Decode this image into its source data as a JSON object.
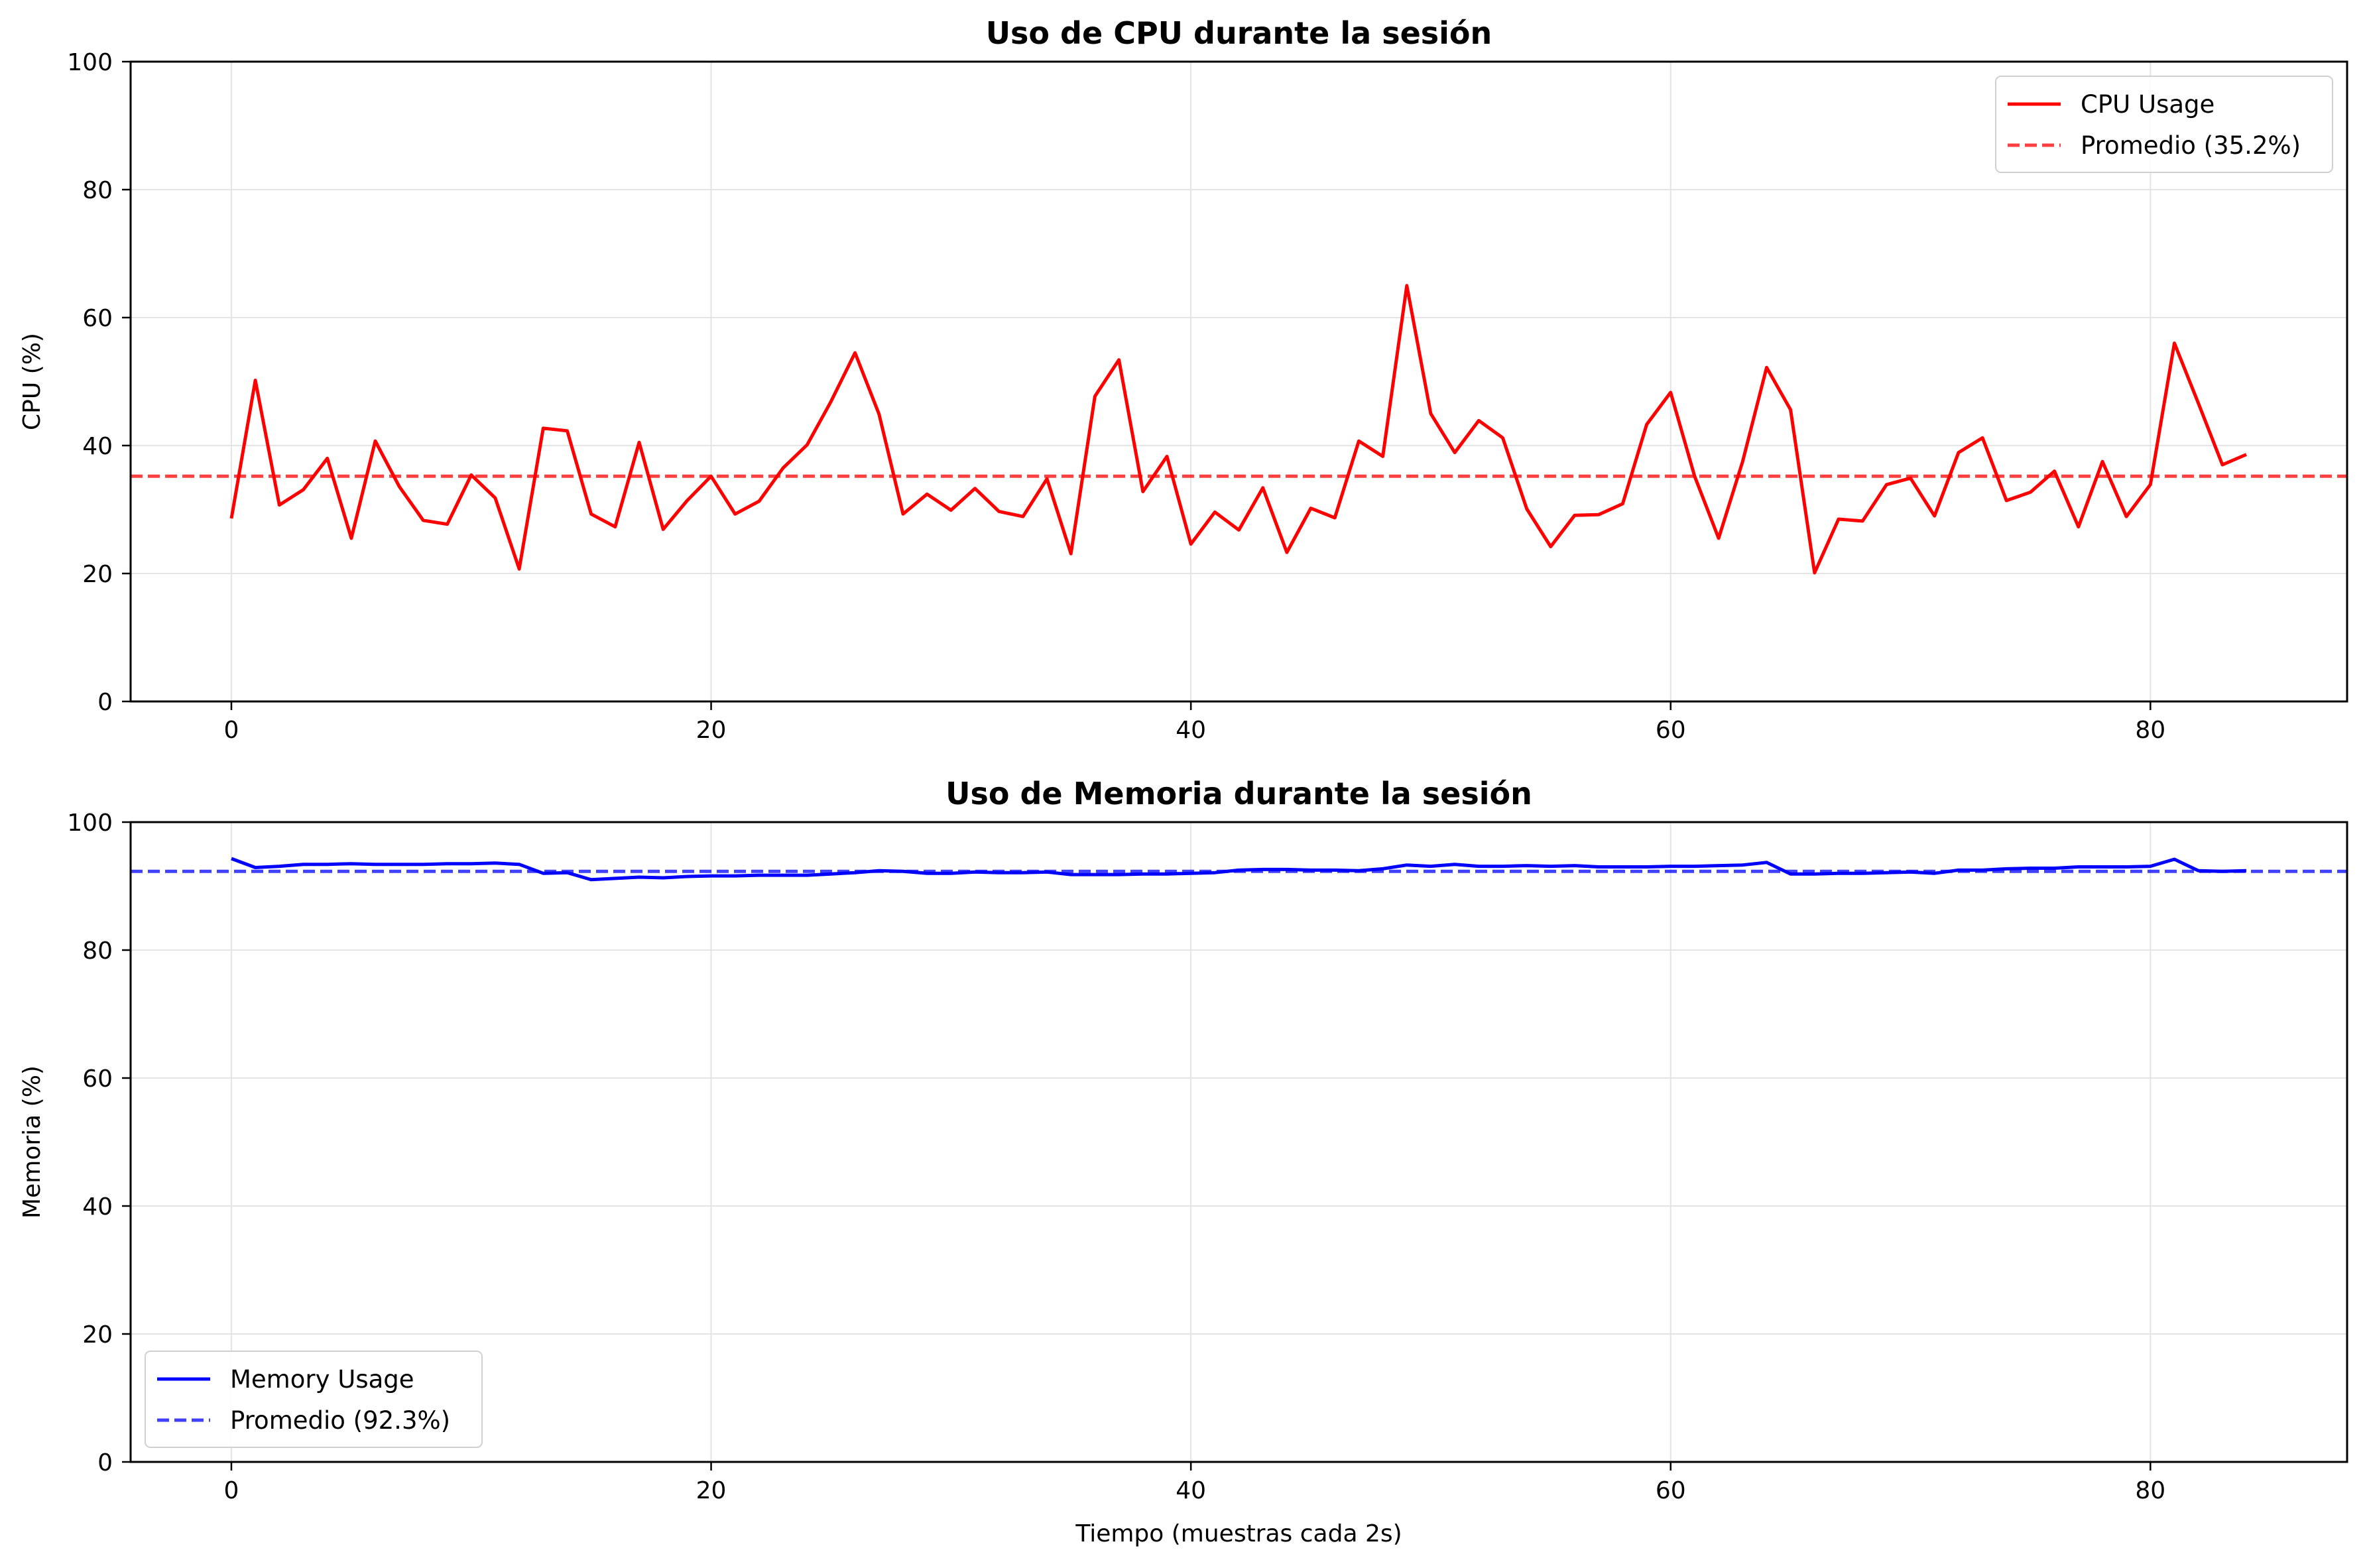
{
  "chart_data": [
    {
      "type": "line",
      "title": "Uso de CPU durante la sesión",
      "xlabel": "",
      "ylabel": "CPU (%)",
      "xlim": [
        -4.2,
        88.2
      ],
      "ylim": [
        0,
        100
      ],
      "xticks": [
        "0",
        "20",
        "40",
        "60",
        "80"
      ],
      "yticks": [
        "0",
        "20",
        "40",
        "60",
        "80",
        "100"
      ],
      "grid": true,
      "legend_position": "top-right",
      "series": [
        {
          "name": "CPU Usage",
          "color": "#ff0000",
          "style": "solid",
          "x_start": 0,
          "x_step": 1,
          "values": [
            28.6,
            50.2,
            30.7,
            33.1,
            38.0,
            25.5,
            40.7,
            33.6,
            28.3,
            27.7,
            35.4,
            31.8,
            20.7,
            42.7,
            42.3,
            29.3,
            27.3,
            40.5,
            26.9,
            31.4,
            35.2,
            29.3,
            31.3,
            36.5,
            40.1,
            46.9,
            54.5,
            44.9,
            29.3,
            32.4,
            29.9,
            33.3,
            29.7,
            28.9,
            34.8,
            23.1,
            47.7,
            53.4,
            32.8,
            38.3,
            24.6,
            29.6,
            26.8,
            33.4,
            23.3,
            30.2,
            28.7,
            40.7,
            38.3,
            65.0,
            45.0,
            38.9,
            43.9,
            41.2,
            30.1,
            24.2,
            29.1,
            29.2,
            30.9,
            43.3,
            48.3,
            35.2,
            25.5,
            37.5,
            52.2,
            45.6,
            20.1,
            28.5,
            28.2,
            33.9,
            34.9,
            29.0,
            38.9,
            41.2,
            31.4,
            32.7,
            36.0,
            27.3,
            37.5,
            28.9,
            33.9,
            56.0,
            46.6,
            37.0,
            38.6
          ]
        },
        {
          "name": "Promedio (35.2%)",
          "color": "#ff0000",
          "style": "dashed",
          "constant": 35.2
        }
      ]
    },
    {
      "type": "line",
      "title": "Uso de Memoria durante la sesión",
      "xlabel": "Tiempo (muestras cada 2s)",
      "ylabel": "Memoria (%)",
      "xlim": [
        -4.2,
        88.2
      ],
      "ylim": [
        0,
        100
      ],
      "xticks": [
        "0",
        "20",
        "40",
        "60",
        "80"
      ],
      "yticks": [
        "0",
        "20",
        "40",
        "60",
        "80",
        "100"
      ],
      "grid": true,
      "legend_position": "bottom-left",
      "series": [
        {
          "name": "Memory Usage",
          "color": "#0000ff",
          "style": "solid",
          "x_start": 0,
          "x_step": 1,
          "values": [
            94.3,
            92.9,
            93.1,
            93.4,
            93.4,
            93.5,
            93.4,
            93.4,
            93.4,
            93.5,
            93.5,
            93.6,
            93.4,
            92.0,
            92.1,
            91.0,
            91.2,
            91.4,
            91.3,
            91.5,
            91.6,
            91.6,
            91.7,
            91.7,
            91.7,
            91.9,
            92.1,
            92.4,
            92.3,
            92.0,
            92.0,
            92.2,
            92.1,
            92.1,
            92.2,
            91.8,
            91.8,
            91.8,
            91.9,
            91.9,
            92.0,
            92.1,
            92.5,
            92.6,
            92.6,
            92.5,
            92.5,
            92.4,
            92.7,
            93.3,
            93.1,
            93.4,
            93.1,
            93.1,
            93.2,
            93.1,
            93.2,
            93.0,
            93.0,
            93.0,
            93.1,
            93.1,
            93.2,
            93.3,
            93.7,
            91.9,
            91.9,
            92.0,
            92.0,
            92.1,
            92.2,
            92.0,
            92.5,
            92.5,
            92.7,
            92.8,
            92.8,
            93.0,
            93.0,
            93.0,
            93.1,
            94.2,
            92.4,
            92.3,
            92.4
          ]
        },
        {
          "name": "Promedio (92.3%)",
          "color": "#0000ff",
          "style": "dashed",
          "constant": 92.3
        }
      ]
    }
  ]
}
